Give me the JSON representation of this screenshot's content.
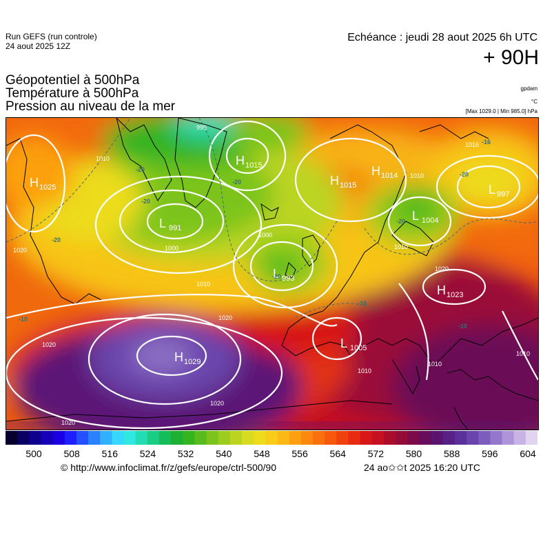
{
  "header": {
    "run_line1": "Run GEFS (run controle)",
    "run_line2": "24 aout 2025 12Z",
    "echeance": "Echéance : jeudi 28 aout 2025 6h UTC",
    "lead": "+ 90H",
    "params": [
      "Géopotentiel à 500hPa",
      "Température à 500hPa",
      "Pression au niveau de la mer"
    ],
    "unit_geo": "gpdam",
    "unit_temp": "°C",
    "unit_pressure": "[Max 1029.0 | Min 985.0] hPa"
  },
  "colorbar": {
    "tick_labels": [
      "500",
      "508",
      "516",
      "524",
      "532",
      "540",
      "548",
      "556",
      "564",
      "572",
      "580",
      "588",
      "596",
      "604"
    ],
    "colors": [
      "#05002e",
      "#0a0062",
      "#10008e",
      "#1600b8",
      "#1a00e0",
      "#1e1eff",
      "#2450ff",
      "#2a82ff",
      "#30b0ff",
      "#36d8ff",
      "#2fe8e0",
      "#24dcb4",
      "#1acc84",
      "#16bc58",
      "#1eb034",
      "#36b420",
      "#58bc1c",
      "#7cc41c",
      "#9ccc1e",
      "#bcd420",
      "#d8dc20",
      "#ecdc1c",
      "#f8cc18",
      "#fcb814",
      "#fca010",
      "#fc880e",
      "#fa700c",
      "#f6580c",
      "#f0400c",
      "#e82a10",
      "#d81818",
      "#c41020",
      "#ac0c2c",
      "#940a38",
      "#7c0a48",
      "#680c5c",
      "#5a1470",
      "#562086",
      "#5c309a",
      "#6a44ac",
      "#7c5cbc",
      "#9476ca",
      "#ae94d8",
      "#c8b4e4",
      "#e0d4f0"
    ]
  },
  "map": {
    "pressure_centers": [
      {
        "type": "H",
        "value": "1025"
      },
      {
        "type": "H",
        "value": "1015"
      },
      {
        "type": "H",
        "value": "1015"
      },
      {
        "type": "H",
        "value": "1014"
      },
      {
        "type": "L",
        "value": "997"
      },
      {
        "type": "L",
        "value": "991"
      },
      {
        "type": "L",
        "value": "1004"
      },
      {
        "type": "L",
        "value": "993"
      },
      {
        "type": "H",
        "value": "1023"
      },
      {
        "type": "H",
        "value": "1029"
      },
      {
        "type": "L",
        "value": "1005"
      }
    ],
    "isobar_labels": [
      "995",
      "1000",
      "1000",
      "1010",
      "1010",
      "1010",
      "1010",
      "1010",
      "1020",
      "1020",
      "1020",
      "1020",
      "1020",
      "1020",
      "1016",
      "1010",
      "1010"
    ],
    "temperature_labels": [
      "-20",
      "-20",
      "-20",
      "-20",
      "-20",
      "-20",
      "-20",
      "-10",
      "-10",
      "-10",
      "-16"
    ]
  },
  "footer": {
    "source": "© http://www.infoclimat.fr/z/gefs/europe/ctrl-500/90",
    "timestamp": "24 ao✩✩t 2025 16:20 UTC"
  }
}
